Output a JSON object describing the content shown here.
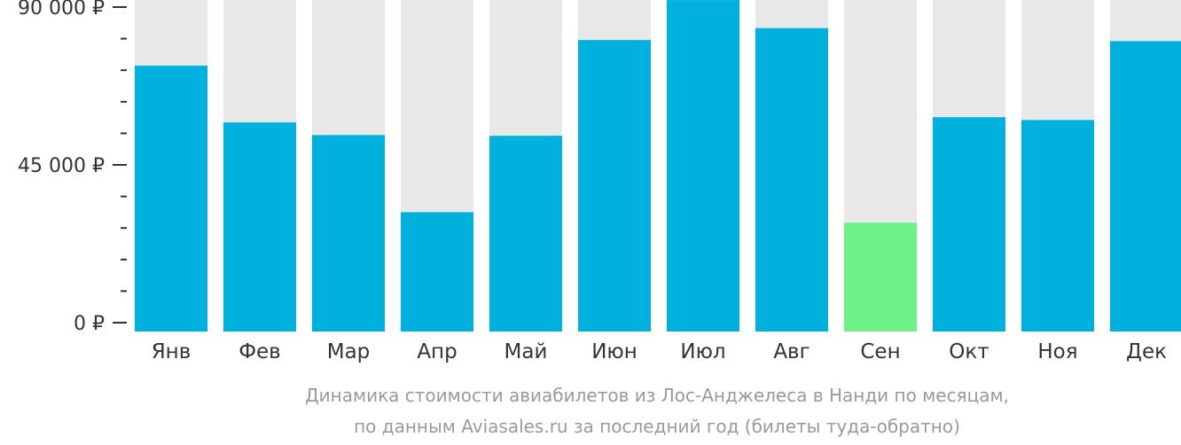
{
  "chart_data": {
    "type": "bar",
    "categories": [
      "Янв",
      "Фев",
      "Мар",
      "Апр",
      "Май",
      "Июн",
      "Июл",
      "Авг",
      "Сен",
      "Окт",
      "Ноя",
      "Дек"
    ],
    "values": [
      73300,
      57100,
      53500,
      31500,
      53300,
      80600,
      92000,
      84000,
      28500,
      58600,
      57800,
      80300
    ],
    "highlight_index": 8,
    "ylim": [
      0,
      93000
    ],
    "yticks": [
      0,
      45000,
      90000
    ],
    "ytick_labels": [
      "0 ₽",
      "45 000 ₽",
      "90 000 ₽"
    ],
    "minor_tick_step": 9000,
    "title": "",
    "xlabel": "",
    "ylabel": "",
    "caption_lines": [
      "Динамика стоимости авиабилетов из Лос-Анджелеса в Нанди по месяцам,",
      "по данным Aviasales.ru за последний год (билеты туда-обратно)"
    ],
    "colors": {
      "bar": "#00b0dd",
      "highlight": "#6ef287",
      "track": "#e8e8e8",
      "axis": "#333333",
      "text": "#333333",
      "caption": "#9a9a9a"
    },
    "grid": false
  }
}
